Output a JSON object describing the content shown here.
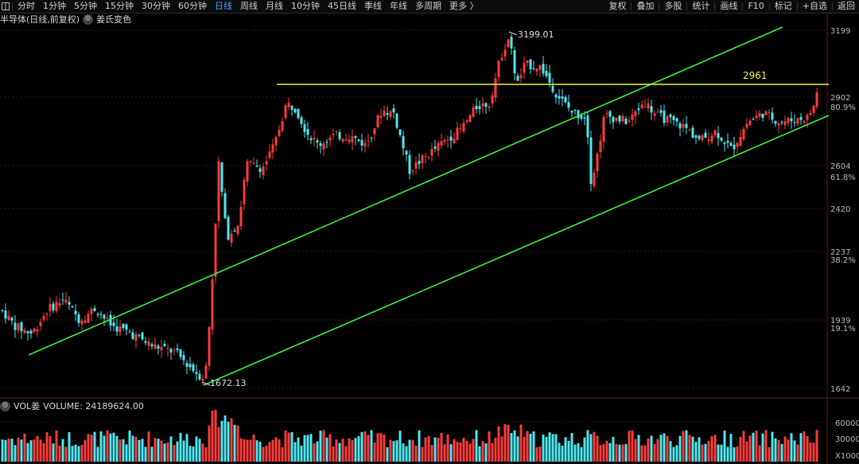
{
  "toolbar": {
    "left_items": [
      "分时",
      "1分钟",
      "5分钟",
      "15分钟",
      "30分钟",
      "60分钟",
      "日线",
      "周线",
      "月线",
      "10分钟",
      "45日线",
      "季线",
      "年线",
      "多周期",
      "更多 〉"
    ],
    "active_item": "日线",
    "right_items": [
      "复权",
      "叠加",
      "多股",
      "统计",
      "画线",
      "F10",
      "标记",
      "+自选",
      "返回"
    ]
  },
  "chart": {
    "title": "半导体(日线,前复权)",
    "indicator_label": "姜氏变色",
    "high_label": "3199.01",
    "low_label": "1672.13",
    "resistance_label": "2961",
    "resistance_color": "#f5f542",
    "channel_color": "#3ef03e",
    "up_color": "#ff3b3b",
    "down_color": "#4ee8f0",
    "y_axis_labels": [
      "3199",
      "2902",
      "80.9%",
      "2604",
      "61.8%",
      "2420",
      "2237",
      "38.2%",
      "1939",
      "19.1%",
      "1642"
    ]
  },
  "volume": {
    "title": "VOL姜",
    "value_label": "VOLUME: 24189624.00",
    "y_axis_labels": [
      "60000",
      "30000",
      "X1000"
    ]
  }
}
